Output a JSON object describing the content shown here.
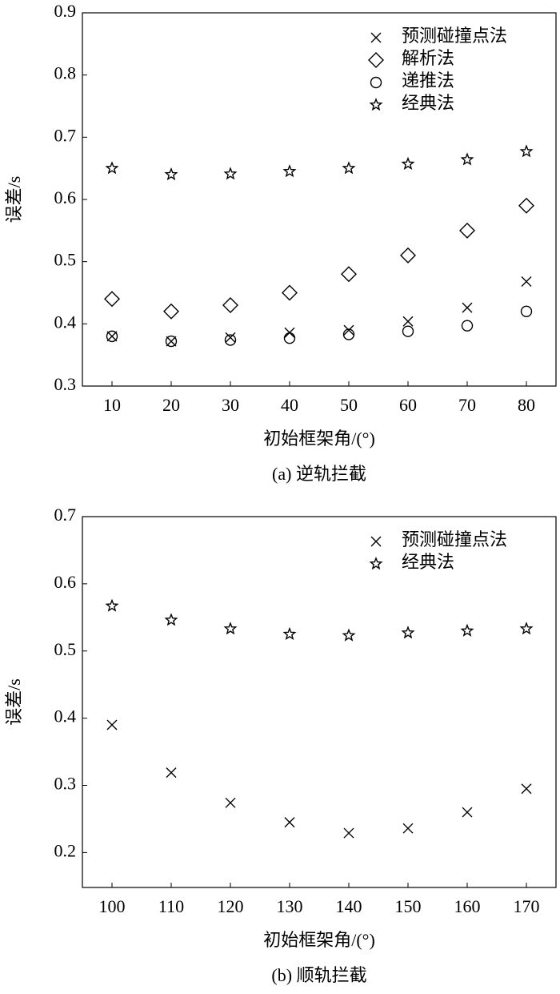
{
  "chart_data": [
    {
      "type": "scatter",
      "caption": "(a) 逆轨拦截",
      "x_label": "初始框架角/(°)",
      "y_label": "误差/s",
      "x": [
        10,
        20,
        30,
        40,
        50,
        60,
        70,
        80
      ],
      "xlim": [
        5,
        85
      ],
      "xticks": [
        10,
        20,
        30,
        40,
        50,
        60,
        70,
        80
      ],
      "ylim": [
        0.3,
        0.9
      ],
      "yticks": [
        0.3,
        0.4,
        0.5,
        0.6,
        0.7,
        0.8,
        0.9
      ],
      "legend": "upper right",
      "series": [
        {
          "name": "预测碰撞点法",
          "color": "#000000",
          "marker": "x",
          "values": [
            0.38,
            0.372,
            0.378,
            0.386,
            0.39,
            0.404,
            0.426,
            0.468
          ]
        },
        {
          "name": "解析法",
          "color": "#000000",
          "marker": "diamond",
          "values": [
            0.44,
            0.42,
            0.43,
            0.45,
            0.48,
            0.51,
            0.55,
            0.59
          ]
        },
        {
          "name": "递推法",
          "color": "#000000",
          "marker": "circle",
          "values": [
            0.38,
            0.372,
            0.374,
            0.377,
            0.383,
            0.388,
            0.397,
            0.42
          ]
        },
        {
          "name": "经典法",
          "color": "#000000",
          "marker": "star",
          "values": [
            0.65,
            0.64,
            0.641,
            0.645,
            0.65,
            0.657,
            0.664,
            0.677
          ]
        }
      ]
    },
    {
      "type": "scatter",
      "caption": "(b) 顺轨拦截",
      "x_label": "初始框架角/(°)",
      "y_label": "误差/s",
      "x": [
        100,
        110,
        120,
        130,
        140,
        150,
        160,
        170
      ],
      "xlim": [
        95,
        175
      ],
      "xticks": [
        100,
        110,
        120,
        130,
        140,
        150,
        160,
        170
      ],
      "ylim": [
        0.148,
        0.7
      ],
      "yticks": [
        0.2,
        0.3,
        0.4,
        0.5,
        0.6,
        0.7
      ],
      "legend": "upper right",
      "series": [
        {
          "name": "预测碰撞点法",
          "color": "#000000",
          "marker": "x",
          "values": [
            0.39,
            0.319,
            0.274,
            0.245,
            0.229,
            0.236,
            0.26,
            0.295
          ]
        },
        {
          "name": "经典法",
          "color": "#000000",
          "marker": "star",
          "values": [
            0.567,
            0.546,
            0.533,
            0.525,
            0.523,
            0.527,
            0.53,
            0.533
          ]
        }
      ]
    }
  ]
}
